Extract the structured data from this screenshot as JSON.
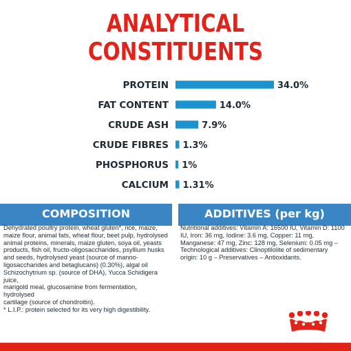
{
  "title": {
    "line1": "ANALYTICAL",
    "line2": "CONSTITUENTS"
  },
  "colors": {
    "title": "#e2231a",
    "bar": "#1c93cf",
    "panel": "#3a86c4",
    "brand": "#e2231a"
  },
  "chart_data": {
    "type": "bar",
    "orientation": "horizontal",
    "categories": [
      "PROTEIN",
      "FAT CONTENT",
      "CRUDE ASH",
      "CRUDE FIBRES",
      "PHOSPHORUS",
      "CALCIUM"
    ],
    "values": [
      34.0,
      14.0,
      7.9,
      1.3,
      1.0,
      1.31
    ],
    "value_labels": [
      "34.0%",
      "14.0%",
      "7.9%",
      "1.3%",
      "1%",
      "1.31%"
    ],
    "unit": "%",
    "xlim": [
      0,
      34
    ],
    "grid": false,
    "legend": "none"
  },
  "composition": {
    "heading": "COMPOSITION",
    "text": "Dehydrated poultry protein, wheat gluten*, rice, maize,\nmaize flour, animal fats, wheat flour, beet pulp, hydrolysed\nanimal proteins, minerals, maize gluten, soya oil, yeasts\nproducts, fish oil, fructo-oligosaccharides, psyllium husks\nand seeds, hydrolysed yeast (source of manno-\nligosaccharides and betaglucans) (0.30%), algal oil\nSchizochytrium sp. (source of DHA), Yucca Schidigera juice,\nmarigold meal, glucosamine from fermentation, hydrolysed\ncartilage (source of chondroitin).\n* L.I.P.: protein selected for its very high digestibility."
  },
  "additives": {
    "heading": "ADDITIVES (per kg)",
    "text": "Nutritional additives: Vitamin A: 16500 IU, Vitamin D: 1100\nIU, Iron: 36 mg, Iodine: 3.6 mg, Copper: 11 mg,\nManganese: 47 mg, Zinc: 128 mg, Selenium: 0.05 mg –\nTechnological additives: Clinoptilolite of sedimentary\norigin: 10 g – Preservatives – Antioxidants."
  }
}
